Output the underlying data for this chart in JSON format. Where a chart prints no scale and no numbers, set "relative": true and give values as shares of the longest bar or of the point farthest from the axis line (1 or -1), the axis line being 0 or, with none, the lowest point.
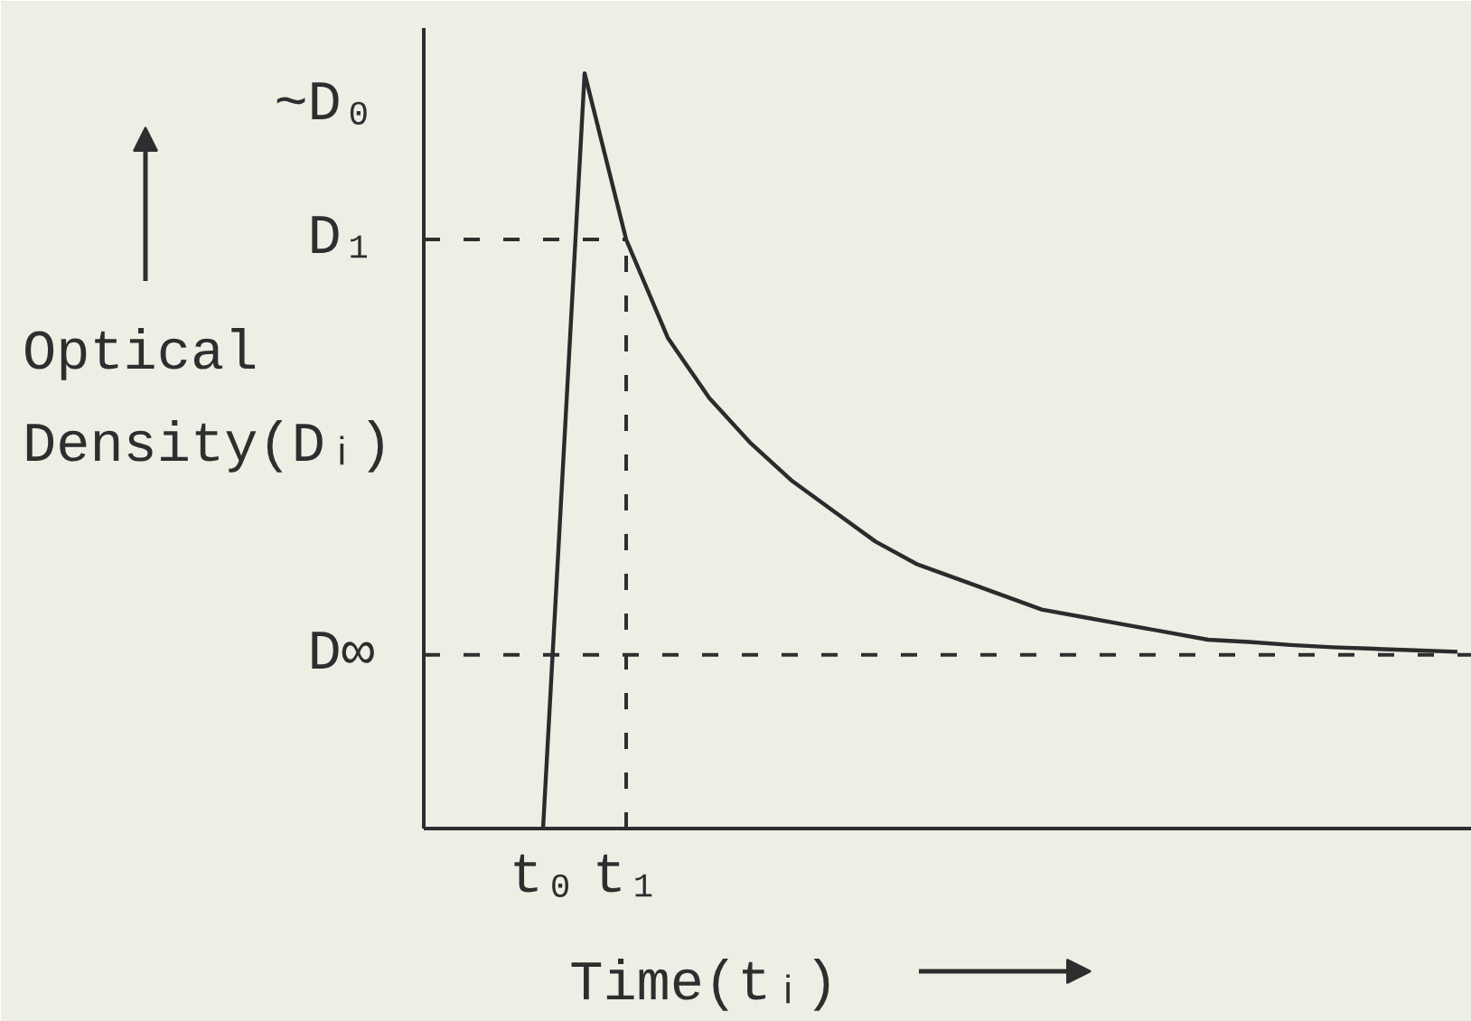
{
  "chart_data": {
    "type": "line",
    "relative": true,
    "xlabel": "Time(tᵢ)",
    "ylabel": "Optical Density(Dᵢ)",
    "categories": [
      "t₀",
      null,
      "t₁",
      null,
      null,
      null,
      null,
      null,
      null,
      null,
      null,
      null,
      null,
      null,
      null,
      null,
      null,
      null,
      null,
      null,
      null,
      null,
      null
    ],
    "series": [
      {
        "color": "#2b2b2b",
        "values": [
          0,
          1,
          0.78,
          0.65,
          0.57,
          0.51,
          0.46,
          0.42,
          0.38,
          0.35,
          0.33,
          0.31,
          0.29,
          0.28,
          0.27,
          0.26,
          0.25,
          0.247,
          0.243,
          0.24,
          0.238,
          0.236,
          0.234
        ]
      }
    ],
    "ref_lines": [
      {
        "axis": "y",
        "value": 0.78,
        "label": "D₁",
        "line_style": "dashed"
      },
      {
        "axis": "y",
        "value": 0.23,
        "label": "D∞",
        "line_style": "dashed"
      },
      {
        "axis": "x",
        "value": "t₁",
        "line_style": "dashed"
      }
    ],
    "annotations": [
      "~D₀"
    ]
  }
}
